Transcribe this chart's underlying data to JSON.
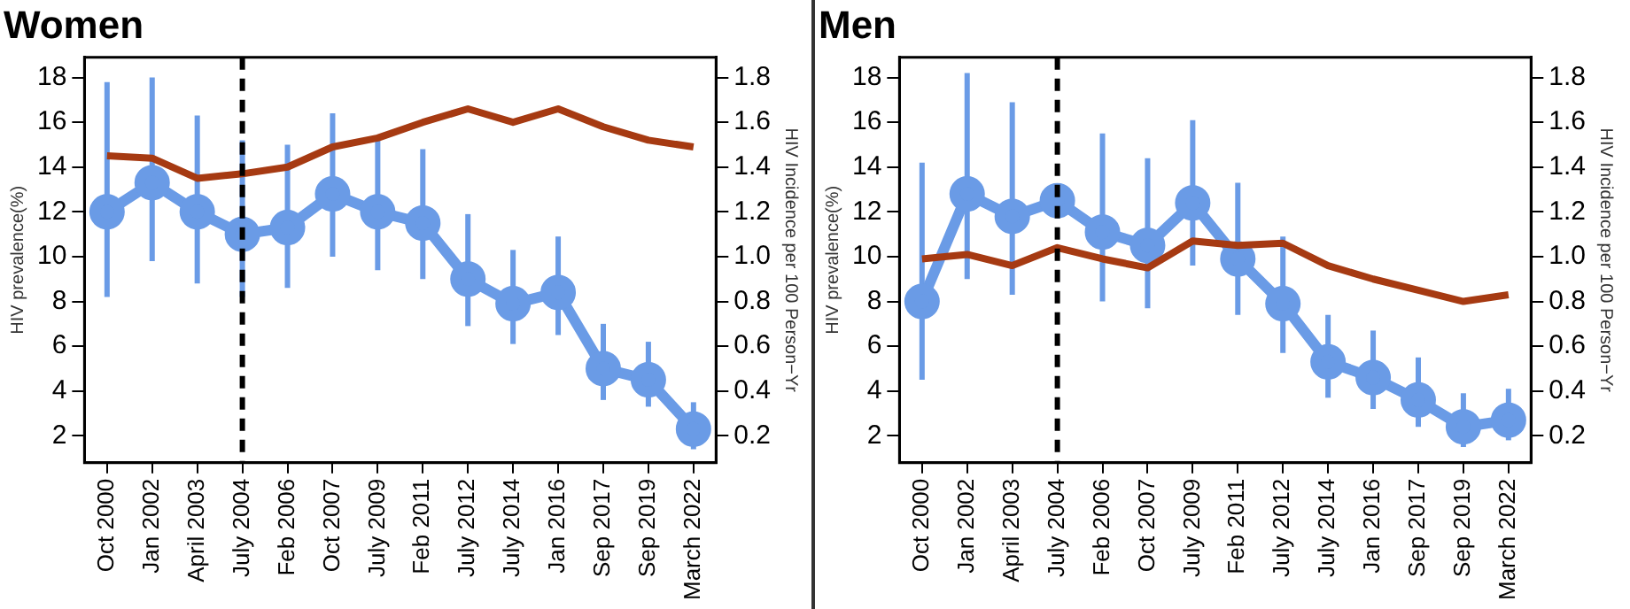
{
  "chart_data": [
    {
      "type": "line",
      "title": "Women",
      "ylabel": "HIV prevalence(%)",
      "y2label": "HIV Incidence per 100 Person−Yr",
      "categories": [
        "Oct 2000",
        "Jan 2002",
        "April 2003",
        "July 2004",
        "Feb 2006",
        "Oct 2007",
        "July 2009",
        "Feb 2011",
        "July 2012",
        "July 2014",
        "Jan 2016",
        "Sep 2017",
        "Sep 2019",
        "March 2022"
      ],
      "series": [
        {
          "color": "#a63a12",
          "axis": "y2",
          "marker": "none",
          "values": [
            1.45,
            1.44,
            1.35,
            1.37,
            1.4,
            1.49,
            1.53,
            1.6,
            1.66,
            1.6,
            1.66,
            1.58,
            1.52,
            1.49
          ]
        },
        {
          "color": "#6a9be6",
          "marker": "circle",
          "values": [
            12,
            13.3,
            12,
            11,
            11.3,
            12.8,
            12,
            11.5,
            9,
            7.9,
            8.4,
            5,
            4.5,
            2.3
          ],
          "errors": [
            [
              8.2,
              17.8
            ],
            [
              9.8,
              18
            ],
            [
              8.8,
              16.3
            ],
            [
              8.2,
              15.2
            ],
            [
              8.6,
              15
            ],
            [
              10,
              16.4
            ],
            [
              9.4,
              15.2
            ],
            [
              9,
              14.8
            ],
            [
              6.9,
              11.9
            ],
            [
              6.1,
              10.3
            ],
            [
              6.5,
              10.9
            ],
            [
              3.6,
              7
            ],
            [
              3.3,
              6.2
            ],
            [
              1.4,
              3.5
            ]
          ]
        }
      ],
      "ylim": [
        0.8,
        18.9
      ],
      "yticks": [
        2,
        4,
        6,
        8,
        10,
        12,
        14,
        16,
        18
      ],
      "y2lim": [
        0.08,
        1.89
      ],
      "y2ticks": [
        0.2,
        0.4,
        0.6,
        0.8,
        {
          "value": 1,
          "label": "1.0"
        },
        1.2,
        1.4,
        1.6,
        1.8
      ],
      "ref_lines": [
        {
          "axis": "x",
          "value": "July 2004",
          "color": "#000000",
          "line_style": "dashed"
        }
      ],
      "grid": false,
      "legend": false
    },
    {
      "type": "line",
      "title": "Men",
      "ylabel": "HIV prevalence(%)",
      "y2label": "HIV Incidence per 100 Person−Yr",
      "categories": [
        "Oct 2000",
        "Jan 2002",
        "April 2003",
        "July 2004",
        "Feb 2006",
        "Oct 2007",
        "July 2009",
        "Feb 2011",
        "July 2012",
        "July 2014",
        "Jan 2016",
        "Sep 2017",
        "Sep 2019",
        "March 2022"
      ],
      "series": [
        {
          "color": "#a63a12",
          "axis": "y2",
          "marker": "none",
          "values": [
            0.99,
            1.01,
            0.96,
            1.04,
            0.99,
            0.95,
            1.07,
            1.05,
            1.06,
            0.96,
            0.9,
            0.85,
            0.8,
            0.83
          ]
        },
        {
          "color": "#6a9be6",
          "marker": "circle",
          "values": [
            8,
            12.8,
            11.8,
            12.5,
            11.1,
            10.5,
            12.4,
            9.9,
            7.9,
            5.3,
            4.6,
            3.6,
            2.4,
            2.7
          ],
          "errors": [
            [
              4.5,
              14.2
            ],
            [
              9,
              18.2
            ],
            [
              8.3,
              16.9
            ],
            null,
            [
              8,
              15.5
            ],
            [
              7.7,
              14.4
            ],
            [
              9.6,
              16.1
            ],
            [
              7.4,
              13.3
            ],
            [
              5.7,
              10.9
            ],
            [
              3.7,
              7.4
            ],
            [
              3.2,
              6.7
            ],
            [
              2.4,
              5.5
            ],
            [
              1.5,
              3.9
            ],
            [
              1.8,
              4.1
            ]
          ]
        }
      ],
      "ylim": [
        0.8,
        18.9
      ],
      "yticks": [
        2,
        4,
        6,
        8,
        10,
        12,
        14,
        16,
        18
      ],
      "y2lim": [
        0.08,
        1.89
      ],
      "y2ticks": [
        0.2,
        0.4,
        0.6,
        0.8,
        {
          "value": 1,
          "label": "1.0"
        },
        1.2,
        1.4,
        1.6,
        1.8
      ],
      "ref_lines": [
        {
          "axis": "x",
          "value": "July 2004",
          "color": "#000000",
          "line_style": "dashed"
        }
      ],
      "grid": false,
      "legend": false
    }
  ]
}
